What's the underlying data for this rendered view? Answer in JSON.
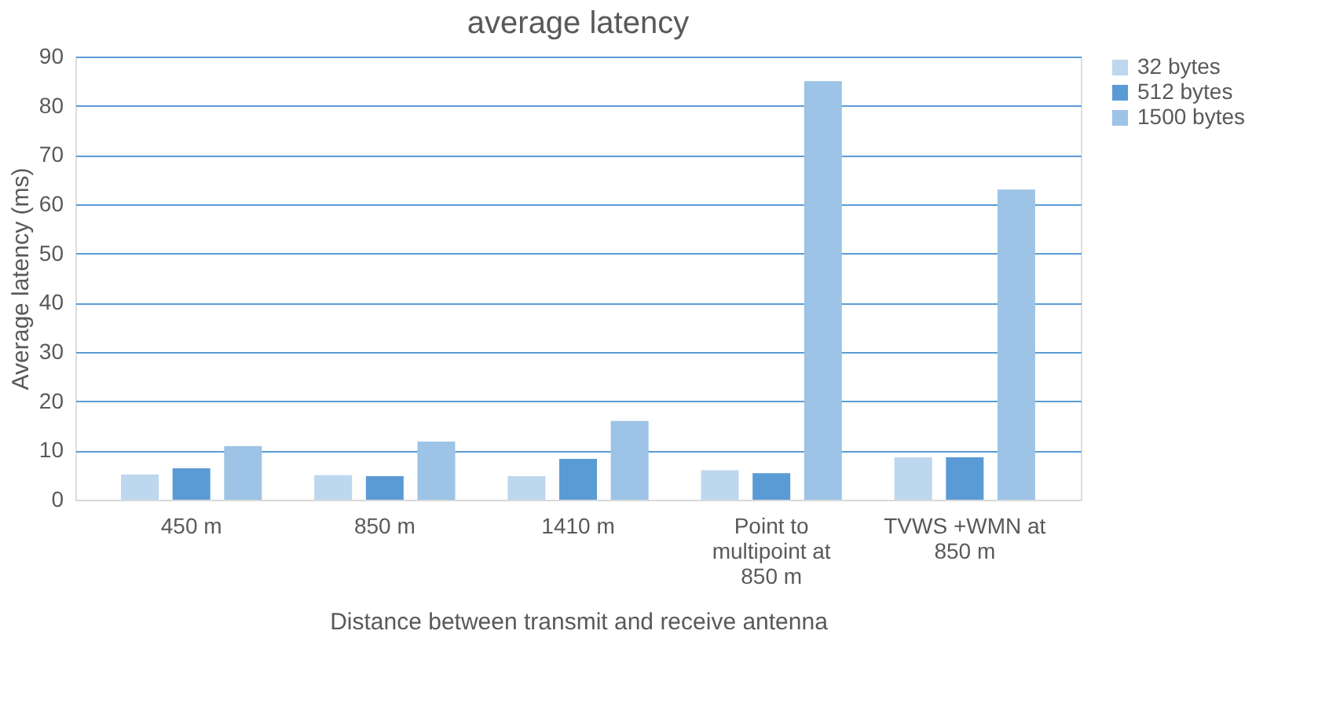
{
  "chart_data": {
    "type": "bar",
    "title": "average latency",
    "xlabel": "Distance between transmit and receive antenna",
    "ylabel": "Average latency (ms)",
    "categories": [
      "450 m",
      "850 m",
      "1410 m",
      "Point to multipoint at 850 m",
      "TVWS +WMN at 850 m"
    ],
    "series": [
      {
        "name": "32 bytes",
        "color": "#bdd7ee",
        "values": [
          5.1,
          5,
          4.8,
          6,
          8.6
        ]
      },
      {
        "name": "512 bytes",
        "color": "#5b9bd5",
        "values": [
          6.4,
          4.8,
          8.3,
          5.4,
          8.6
        ]
      },
      {
        "name": "1500 bytes",
        "color": "#9dc3e6",
        "values": [
          10.9,
          11.8,
          16,
          85,
          63
        ]
      }
    ],
    "ylim": [
      0,
      90
    ],
    "yticks": [
      0,
      10,
      20,
      30,
      40,
      50,
      60,
      70,
      80,
      90
    ],
    "grid": "y",
    "legend": "right"
  }
}
